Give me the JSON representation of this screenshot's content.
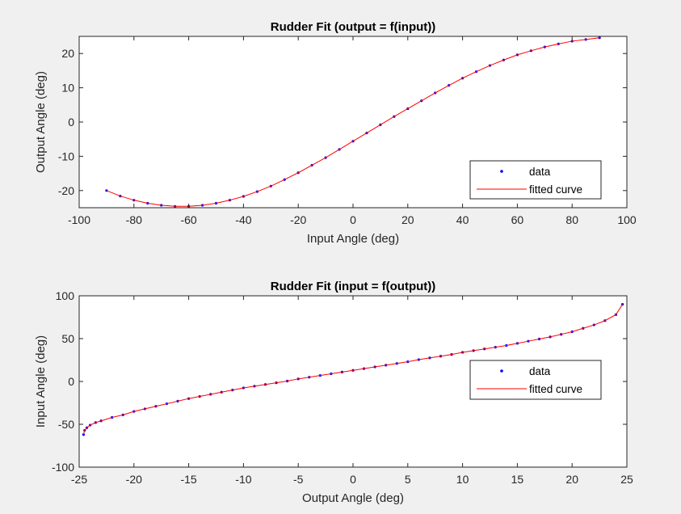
{
  "chart_data": [
    {
      "type": "scatter",
      "title": "Rudder Fit (output = f(input))",
      "xlabel": "Input Angle (deg)",
      "ylabel": "Output Angle (deg)",
      "xlim": [
        -100,
        100
      ],
      "ylim": [
        -25,
        25
      ],
      "xticks": [
        -100,
        -80,
        -60,
        -40,
        -20,
        0,
        20,
        40,
        60,
        80,
        100
      ],
      "yticks": [
        -20,
        -10,
        0,
        10,
        20
      ],
      "grid": false,
      "legend_position": "bottom-right",
      "series": [
        {
          "name": "data",
          "kind": "markers",
          "color": "#0000ff",
          "x": [
            -90,
            -85,
            -80,
            -75,
            -70,
            -65,
            -60,
            -55,
            -50,
            -45,
            -40,
            -35,
            -30,
            -25,
            -20,
            -15,
            -10,
            -5,
            0,
            5,
            10,
            15,
            20,
            25,
            30,
            35,
            40,
            45,
            50,
            55,
            60,
            65,
            70,
            75,
            80,
            85,
            90
          ],
          "y": [
            -20.0,
            -21.6,
            -22.8,
            -23.7,
            -24.3,
            -24.6,
            -24.6,
            -24.3,
            -23.7,
            -22.8,
            -21.7,
            -20.3,
            -18.7,
            -16.8,
            -14.8,
            -12.6,
            -10.4,
            -8.0,
            -5.6,
            -3.2,
            -0.8,
            1.6,
            3.9,
            6.2,
            8.5,
            10.7,
            12.8,
            14.7,
            16.5,
            18.1,
            19.6,
            20.8,
            21.9,
            22.8,
            23.6,
            24.1,
            24.6
          ]
        },
        {
          "name": "fitted curve",
          "kind": "line",
          "color": "#ff0000",
          "x": [
            -90,
            -85,
            -80,
            -75,
            -70,
            -65,
            -60,
            -55,
            -50,
            -45,
            -40,
            -35,
            -30,
            -25,
            -20,
            -15,
            -10,
            -5,
            0,
            5,
            10,
            15,
            20,
            25,
            30,
            35,
            40,
            45,
            50,
            55,
            60,
            65,
            70,
            75,
            80,
            85,
            90
          ],
          "y": [
            -20.0,
            -21.6,
            -22.8,
            -23.7,
            -24.3,
            -24.6,
            -24.6,
            -24.3,
            -23.7,
            -22.8,
            -21.7,
            -20.3,
            -18.7,
            -16.8,
            -14.8,
            -12.6,
            -10.4,
            -8.0,
            -5.6,
            -3.2,
            -0.8,
            1.6,
            3.9,
            6.2,
            8.5,
            10.7,
            12.8,
            14.7,
            16.5,
            18.1,
            19.6,
            20.8,
            21.9,
            22.8,
            23.6,
            24.1,
            24.6
          ]
        }
      ]
    },
    {
      "type": "scatter",
      "title": "Rudder Fit (input = f(output))",
      "xlabel": "Output Angle (deg)",
      "ylabel": "Input Angle (deg)",
      "xlim": [
        -25,
        25
      ],
      "ylim": [
        -100,
        100
      ],
      "xticks": [
        -25,
        -20,
        -15,
        -10,
        -5,
        0,
        5,
        10,
        15,
        20,
        25
      ],
      "yticks": [
        -100,
        -50,
        0,
        50,
        100
      ],
      "grid": false,
      "legend_position": "right",
      "series": [
        {
          "name": "data",
          "kind": "markers",
          "color": "#0000ff",
          "x": [
            -24.6,
            -24.5,
            -24.3,
            -24.0,
            -23.5,
            -23.0,
            -22.0,
            -21.0,
            -20.0,
            -19.0,
            -18.0,
            -17.0,
            -16.0,
            -15.0,
            -14.0,
            -13.0,
            -12.0,
            -11.0,
            -10.0,
            -9.0,
            -8.0,
            -7.0,
            -6.0,
            -5.0,
            -4.0,
            -3.0,
            -2.0,
            -1.0,
            0.0,
            1.0,
            2.0,
            3.0,
            4.0,
            5.0,
            6.0,
            7.0,
            8.0,
            9.0,
            10.0,
            11.0,
            12.0,
            13.0,
            14.0,
            15.0,
            16.0,
            17.0,
            18.0,
            19.0,
            20.0,
            21.0,
            22.0,
            23.0,
            24.0,
            24.6
          ],
          "y": [
            -62,
            -57,
            -54,
            -51,
            -48,
            -46,
            -42,
            -39,
            -35,
            -32,
            -29,
            -26,
            -23,
            -20,
            -17.5,
            -15,
            -12.5,
            -10,
            -7.5,
            -5.5,
            -3.5,
            -1.5,
            0.5,
            3,
            5,
            7,
            9,
            11,
            13,
            15,
            17,
            19,
            21,
            23,
            25.5,
            27.5,
            29.5,
            31.5,
            34,
            36,
            38,
            40,
            42,
            44.5,
            47,
            49.5,
            52,
            55,
            58,
            62,
            66,
            71,
            78,
            90
          ]
        },
        {
          "name": "fitted curve",
          "kind": "line",
          "color": "#ff0000",
          "x": [
            -24.6,
            -24.5,
            -24.3,
            -24.0,
            -23.5,
            -23.0,
            -22.0,
            -21.0,
            -20.0,
            -19.0,
            -18.0,
            -17.0,
            -16.0,
            -15.0,
            -14.0,
            -13.0,
            -12.0,
            -11.0,
            -10.0,
            -9.0,
            -8.0,
            -7.0,
            -6.0,
            -5.0,
            -4.0,
            -3.0,
            -2.0,
            -1.0,
            0.0,
            1.0,
            2.0,
            3.0,
            4.0,
            5.0,
            6.0,
            7.0,
            8.0,
            9.0,
            10.0,
            11.0,
            12.0,
            13.0,
            14.0,
            15.0,
            16.0,
            17.0,
            18.0,
            19.0,
            20.0,
            21.0,
            22.0,
            23.0,
            24.0,
            24.6
          ],
          "y": [
            -62,
            -57,
            -54,
            -51,
            -48,
            -46,
            -42,
            -39,
            -35,
            -32,
            -29,
            -26,
            -23,
            -20,
            -17.5,
            -15,
            -12.5,
            -10,
            -7.5,
            -5.5,
            -3.5,
            -1.5,
            0.5,
            3,
            5,
            7,
            9,
            11,
            13,
            15,
            17,
            19,
            21,
            23,
            25.5,
            27.5,
            29.5,
            31.5,
            34,
            36,
            38,
            40,
            42,
            44.5,
            47,
            49.5,
            52,
            55,
            58,
            62,
            66,
            71,
            78,
            90
          ]
        }
      ]
    }
  ]
}
